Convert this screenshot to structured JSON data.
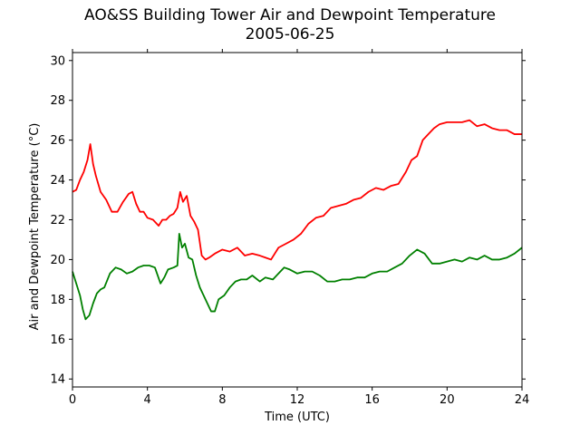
{
  "chart_data": {
    "type": "line",
    "title": "AO&SS Building Tower Air and Dewpoint Temperature",
    "subtitle": "2005-06-25",
    "xlabel": "Time (UTC)",
    "ylabel": "Air and Dewpoint Temperature (°C)",
    "xlim": [
      0,
      24
    ],
    "ylim": [
      13.6,
      30.4
    ],
    "xticks": [
      "0",
      "4",
      "8",
      "12",
      "16",
      "20",
      "24"
    ],
    "yticks": [
      "14",
      "16",
      "18",
      "20",
      "22",
      "24",
      "26",
      "28",
      "30"
    ],
    "grid": false,
    "legend": "none",
    "series": [
      {
        "color": "#ff0000",
        "x": [
          0,
          0.2,
          0.4,
          0.6,
          0.8,
          0.95,
          1.1,
          1.25,
          1.5,
          1.8,
          2.1,
          2.4,
          2.7,
          3.0,
          3.2,
          3.4,
          3.6,
          3.8,
          4.0,
          4.3,
          4.6,
          4.8,
          5.0,
          5.2,
          5.4,
          5.6,
          5.75,
          5.9,
          6.1,
          6.3,
          6.5,
          6.7,
          6.9,
          7.1,
          7.3,
          7.6,
          8.0,
          8.4,
          8.8,
          9.2,
          9.6,
          10.0,
          10.3,
          10.6,
          11.0,
          11.4,
          11.8,
          12.2,
          12.6,
          13.0,
          13.4,
          13.8,
          14.2,
          14.6,
          15.0,
          15.4,
          15.8,
          16.2,
          16.6,
          17.0,
          17.4,
          17.8,
          18.1,
          18.4,
          18.7,
          19.0,
          19.3,
          19.6,
          20.0,
          20.4,
          20.8,
          21.2,
          21.6,
          22.0,
          22.4,
          22.8,
          23.2,
          23.6,
          24.0
        ],
        "y": [
          23.4,
          23.5,
          24.0,
          24.4,
          25.0,
          25.8,
          24.8,
          24.2,
          23.4,
          23.0,
          22.4,
          22.4,
          22.9,
          23.3,
          23.4,
          22.8,
          22.4,
          22.4,
          22.1,
          22.0,
          21.7,
          22.0,
          22.0,
          22.2,
          22.3,
          22.6,
          23.4,
          22.9,
          23.2,
          22.2,
          21.9,
          21.5,
          20.2,
          20.0,
          20.1,
          20.3,
          20.5,
          20.4,
          20.6,
          20.2,
          20.3,
          20.2,
          20.1,
          20.0,
          20.6,
          20.8,
          21.0,
          21.3,
          21.8,
          22.1,
          22.2,
          22.6,
          22.7,
          22.8,
          23.0,
          23.1,
          23.4,
          23.6,
          23.5,
          23.7,
          23.8,
          24.4,
          25.0,
          25.2,
          26.0,
          26.3,
          26.6,
          26.8,
          26.9,
          26.9,
          26.9,
          27.0,
          26.7,
          26.8,
          26.6,
          26.5,
          26.5,
          26.3,
          26.3
        ]
      },
      {
        "color": "#008000",
        "x": [
          0,
          0.2,
          0.4,
          0.55,
          0.7,
          0.9,
          1.1,
          1.3,
          1.5,
          1.7,
          2.0,
          2.3,
          2.6,
          2.9,
          3.2,
          3.5,
          3.8,
          4.1,
          4.4,
          4.7,
          4.9,
          5.1,
          5.4,
          5.6,
          5.7,
          5.85,
          6.0,
          6.2,
          6.4,
          6.6,
          6.8,
          7.0,
          7.2,
          7.4,
          7.6,
          7.8,
          8.1,
          8.4,
          8.7,
          9.0,
          9.3,
          9.6,
          10.0,
          10.3,
          10.7,
          11.0,
          11.3,
          11.6,
          12.0,
          12.4,
          12.8,
          13.2,
          13.6,
          14.0,
          14.4,
          14.8,
          15.2,
          15.6,
          16.0,
          16.4,
          16.8,
          17.2,
          17.6,
          18.0,
          18.4,
          18.8,
          19.2,
          19.6,
          20.0,
          20.4,
          20.8,
          21.2,
          21.6,
          22.0,
          22.4,
          22.8,
          23.2,
          23.6,
          24.0
        ],
        "y": [
          19.4,
          18.8,
          18.2,
          17.5,
          17.0,
          17.2,
          17.8,
          18.3,
          18.5,
          18.6,
          19.3,
          19.6,
          19.5,
          19.3,
          19.4,
          19.6,
          19.7,
          19.7,
          19.6,
          18.8,
          19.1,
          19.5,
          19.6,
          19.7,
          21.3,
          20.6,
          20.8,
          20.1,
          20.0,
          19.2,
          18.6,
          18.2,
          17.8,
          17.4,
          17.4,
          18.0,
          18.2,
          18.6,
          18.9,
          19.0,
          19.0,
          19.2,
          18.9,
          19.1,
          19.0,
          19.3,
          19.6,
          19.5,
          19.3,
          19.4,
          19.4,
          19.2,
          18.9,
          18.9,
          19.0,
          19.0,
          19.1,
          19.1,
          19.3,
          19.4,
          19.4,
          19.6,
          19.8,
          20.2,
          20.5,
          20.3,
          19.8,
          19.8,
          19.9,
          20.0,
          19.9,
          20.1,
          20.0,
          20.2,
          20.0,
          20.0,
          20.1,
          20.3,
          20.6
        ]
      }
    ]
  }
}
